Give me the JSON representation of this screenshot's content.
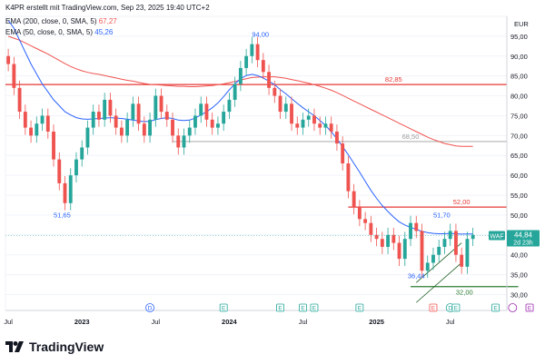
{
  "header": {
    "author_line": "K4PR erstellt mit TradingView.com, Sep 23, 2025 19:40 UTC+2",
    "ema200_text": "EMA (200, close, 0, SMA, 5)",
    "ema200_value": "67,27",
    "ema50_text": "EMA (50, close, 0, SMA, 5)",
    "ema50_value": "45,26",
    "currency": "EUR"
  },
  "brand": {
    "name": "TradingView"
  },
  "colors": {
    "up": "#26a69a",
    "down": "#ef5350",
    "ema200": "#ef5350",
    "ema50": "#2962ff",
    "hline_red": "#e53935",
    "hline_grey": "#9e9e9e",
    "hline_green": "#2e7d32",
    "channel": "#1b5e20"
  },
  "chart_data": {
    "type": "candlestick",
    "ylim": [
      26,
      100
    ],
    "yticks": [
      "30,00",
      "35,00",
      "40,00",
      "45,00",
      "50,00",
      "55,00",
      "60,00",
      "65,00",
      "70,00",
      "75,00",
      "80,00",
      "85,00",
      "90,00",
      "95,00"
    ],
    "xtick_labels": [
      {
        "label": "Jul",
        "t": 0,
        "bold": false
      },
      {
        "label": "2023",
        "t": 13,
        "bold": true
      },
      {
        "label": "Jul",
        "t": 26,
        "bold": false
      },
      {
        "label": "2024",
        "t": 39,
        "bold": true
      },
      {
        "label": "Jul",
        "t": 52,
        "bold": false
      },
      {
        "label": "2025",
        "t": 65,
        "bold": true
      },
      {
        "label": "Jul",
        "t": 78,
        "bold": false
      }
    ],
    "candles_close": [
      88,
      82,
      76,
      72,
      70,
      73,
      75,
      71,
      64,
      58,
      53,
      60,
      64,
      67,
      72,
      76,
      74,
      79,
      75,
      72,
      70,
      74,
      78,
      73,
      70,
      74,
      80,
      76,
      74,
      70,
      67,
      70,
      72,
      75,
      78,
      74,
      72,
      73,
      76,
      79,
      83,
      87,
      90,
      93,
      89,
      86,
      82,
      80,
      76,
      78,
      73,
      72,
      74,
      75,
      73,
      72,
      73,
      71,
      68,
      63,
      56,
      52,
      49,
      48,
      45,
      44,
      42,
      45,
      43,
      39,
      44,
      48,
      46,
      36,
      38,
      40,
      42,
      44,
      46,
      40,
      37,
      44,
      45
    ],
    "ema200": [
      95,
      94.5,
      94,
      93.3,
      92.6,
      91.9,
      91.2,
      90.5,
      89.7,
      88.9,
      88.1,
      87.4,
      86.8,
      86.3,
      85.9,
      85.6,
      85.4,
      85.1,
      84.8,
      84.5,
      84.2,
      83.9,
      83.7,
      83.4,
      83.1,
      82.9,
      82.8,
      82.7,
      82.6,
      82.5,
      82.4,
      82.4,
      82.3,
      82.3,
      82.4,
      82.5,
      82.6,
      82.8,
      83.0,
      83.3,
      83.6,
      84.0,
      84.3,
      84.6,
      84.7,
      84.8,
      84.8,
      84.8,
      84.6,
      84.4,
      84.1,
      83.8,
      83.5,
      83.2,
      82.8,
      82.4,
      81.9,
      81.4,
      80.8,
      80.1,
      79.4,
      78.7,
      78.0,
      77.3,
      76.6,
      75.9,
      75.2,
      74.5,
      73.8,
      73.1,
      72.4,
      71.7,
      71.0,
      70.3,
      69.6,
      69.0,
      68.5,
      68.0,
      67.7,
      67.4,
      67.3,
      67.27,
      67.27
    ],
    "ema50": [
      99,
      97,
      94,
      91,
      88,
      85.5,
      83,
      81,
      79,
      77.5,
      76,
      75.2,
      74.5,
      74.2,
      74.1,
      74.2,
      74.3,
      74.4,
      74.5,
      74.4,
      74.3,
      74.1,
      73.9,
      73.7,
      73.5,
      73.6,
      74,
      74.3,
      74.5,
      74.3,
      73.9,
      73.8,
      73.9,
      74.4,
      75.2,
      76,
      77,
      78.2,
      79.8,
      81.5,
      83,
      84.3,
      85.1,
      85.4,
      85.1,
      84.5,
      83.7,
      82.8,
      81.6,
      80.5,
      79.3,
      78.1,
      77.0,
      76.0,
      75.0,
      73.8,
      72.5,
      71.0,
      69.2,
      67.2,
      65.2,
      63.0,
      60.8,
      58.5,
      56.2,
      54.2,
      52.4,
      50.9,
      49.5,
      48.3,
      47.5,
      46.9,
      46.4,
      45.9,
      45.6,
      45.4,
      45.3,
      45.3,
      45.4,
      45.3,
      45.2,
      45.26,
      45.26
    ],
    "horizontal_levels": [
      {
        "value": 82.85,
        "label": "82,85",
        "color_key": "hline_red"
      },
      {
        "value": 68.5,
        "label": "68,50",
        "color_key": "hline_grey"
      },
      {
        "value": 52.0,
        "label": "52,00",
        "color_key": "hline_red"
      },
      {
        "value": 32.0,
        "label": "32,00",
        "color_key": "hline_green"
      }
    ],
    "annotations": [
      {
        "label": "94,00",
        "t": 44.5,
        "value": 94,
        "color": "#2962ff"
      },
      {
        "label": "51,65",
        "t": 9.5,
        "value": 51.65,
        "color": "#2962ff"
      },
      {
        "label": "36,44",
        "t": 72,
        "value": 36.44,
        "color": "#2962ff"
      },
      {
        "label": "51,70",
        "t": 76.5,
        "value": 51.7,
        "color": "#2962ff"
      }
    ],
    "price_tag": {
      "symbol": "WAF",
      "price": "44,84",
      "countdown": "2d 23h",
      "value": 44.84
    },
    "events": [
      {
        "t": 25,
        "letter": "D",
        "kind": "circle",
        "color": "#2962ff"
      },
      {
        "t": 38,
        "letter": "E",
        "kind": "square",
        "color": "#26a69a"
      },
      {
        "t": 48,
        "letter": "E",
        "kind": "square",
        "color": "#26a69a"
      },
      {
        "t": 52,
        "letter": "E",
        "kind": "square",
        "color": "#26a69a"
      },
      {
        "t": 54,
        "letter": "E",
        "kind": "square",
        "color": "#26a69a"
      },
      {
        "t": 62,
        "letter": "E",
        "kind": "square",
        "color": "#26a69a"
      },
      {
        "t": 75,
        "letter": "E",
        "kind": "square",
        "color": "#ef5350"
      },
      {
        "t": 78,
        "letter": "D",
        "kind": "circle",
        "color": "#26a69a"
      },
      {
        "t": 79,
        "letter": "E",
        "kind": "square",
        "color": "#26a69a"
      },
      {
        "t": 86,
        "letter": "E",
        "kind": "square",
        "color": "#26a69a"
      },
      {
        "t": 89,
        "letter": "",
        "kind": "circle-mix",
        "color": "#9c27b0"
      },
      {
        "t": 92,
        "letter": "E",
        "kind": "square",
        "color": "#9c27b0"
      }
    ]
  }
}
